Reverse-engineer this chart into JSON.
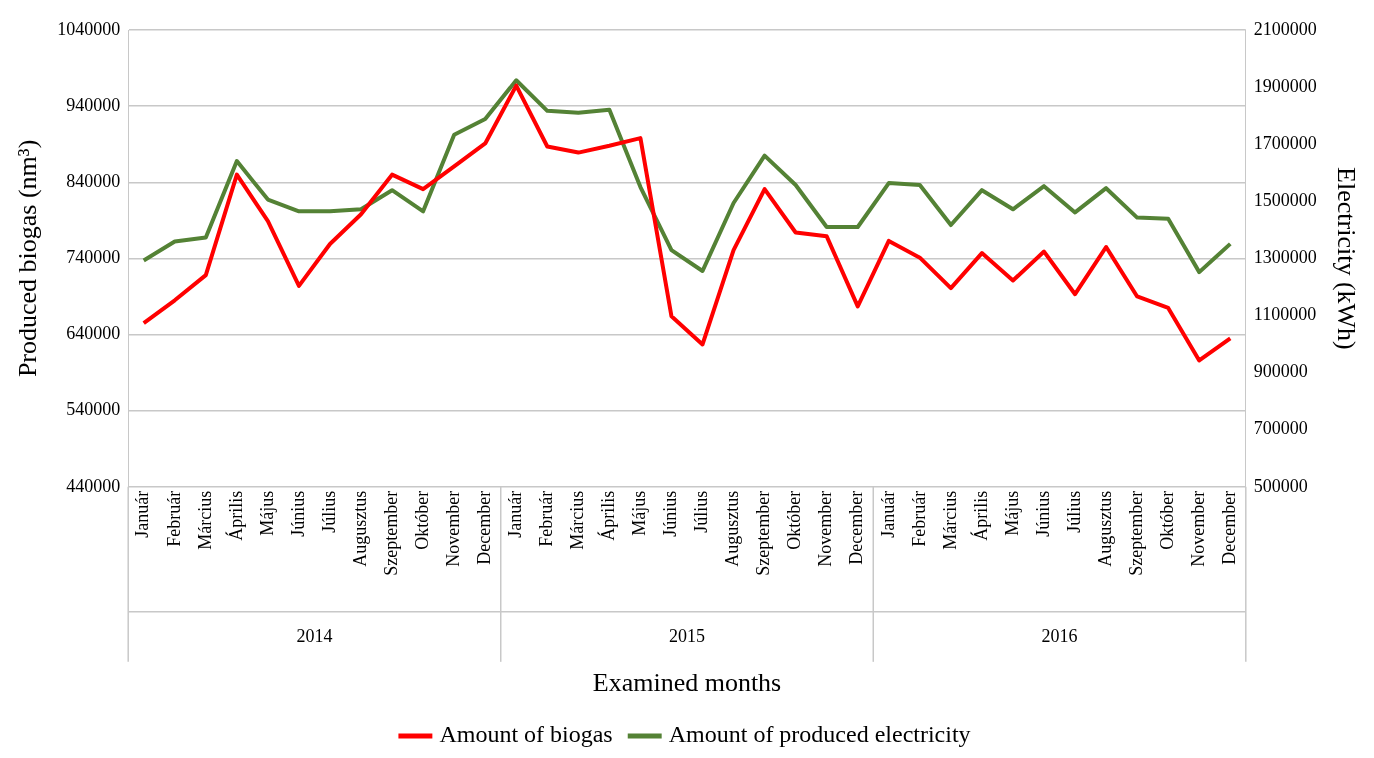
{
  "chart_data": {
    "type": "line",
    "xlabel": "Examined months",
    "ylabel": "Produced biogas (nm³)",
    "y2label": "Electricity (kWh)",
    "categories": [
      "Január",
      "Február",
      "Március",
      "Április",
      "Május",
      "Június",
      "Július",
      "Augusztus",
      "Szeptember",
      "Október",
      "November",
      "December",
      "Január",
      "Február",
      "Március",
      "Április",
      "Május",
      "Június",
      "Július",
      "Augusztus",
      "Szeptember",
      "Október",
      "November",
      "December",
      "Január",
      "Február",
      "Március",
      "Április",
      "Május",
      "Június",
      "Július",
      "Augusztus",
      "Szeptember",
      "Október",
      "November",
      "December"
    ],
    "annotations": [
      "2014",
      "2015",
      "2016"
    ],
    "series": [
      {
        "name": "Amount of biogas",
        "color": "#ff0000",
        "values": [
          655000,
          685000,
          718000,
          850000,
          789000,
          704000,
          759000,
          798000,
          850000,
          831000,
          861000,
          891000,
          967000,
          887000,
          879000,
          888000,
          898000,
          664000,
          627000,
          751000,
          831000,
          774000,
          769000,
          677000,
          763000,
          741000,
          701000,
          747000,
          711000,
          749000,
          693000,
          755000,
          690000,
          675000,
          606000,
          635000
        ]
      },
      {
        "name": "Amount of produced electricity",
        "color": "#548235",
        "axis": "y2",
        "values": [
          1293000,
          1359000,
          1373000,
          1641000,
          1506000,
          1465000,
          1465000,
          1472000,
          1539000,
          1465000,
          1733000,
          1788000,
          1924000,
          1817000,
          1810000,
          1821000,
          1550000,
          1329000,
          1256000,
          1494000,
          1660000,
          1557000,
          1410000,
          1410000,
          1564000,
          1557000,
          1417000,
          1539000,
          1472000,
          1553000,
          1461000,
          1546000,
          1443000,
          1439000,
          1252000,
          1351000
        ]
      }
    ],
    "ylim": [
      440000,
      1040000
    ],
    "yticks": [
      440000,
      540000,
      640000,
      740000,
      840000,
      940000,
      1040000
    ],
    "y2lim": [
      500000,
      2100000
    ],
    "y2ticks": [
      500000,
      700000,
      900000,
      1100000,
      1300000,
      1500000,
      1700000,
      1900000,
      2100000
    ],
    "grid": "y",
    "legend": "bottom",
    "marker": "none",
    "line_style": "solid"
  }
}
